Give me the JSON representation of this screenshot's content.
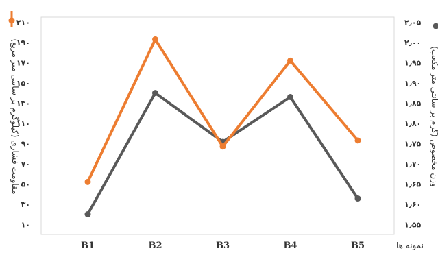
{
  "chart_data": {
    "type": "line",
    "categories": [
      "B1",
      "B2",
      "B3",
      "B4",
      "B5"
    ],
    "xlabel": "نمونه ها",
    "ylabel_left": "مقاومت فشاری (کیلوگرم بر سانتی متر مربع)",
    "ylabel_right": "وزن مخصوص (گرم بر سانتی متر مکعب)",
    "yticks_left": [
      "۱۰",
      "۳۰",
      "۵۰",
      "۷۰",
      "۹۰",
      "۱۱۰",
      "۱۳۰",
      "۱۵۰",
      "۱۷۰",
      "۱۹۰",
      "۲۱۰"
    ],
    "yticks_right": [
      "۱٫۵۵",
      "۱٫۶۰",
      "۱٫۶۵",
      "۱٫۷۰",
      "۱٫۷۵",
      "۱٫۸۰",
      "۱٫۸۵",
      "۱٫۹۰",
      "۱٫۹۵",
      "۲٫۰۰",
      "۲٫۰۵"
    ],
    "ylim_left": [
      0,
      215
    ],
    "ylim_right": [
      1.525,
      2.0625
    ],
    "grid": false,
    "series": [
      {
        "axis": "left",
        "color": "#ed7d31",
        "values": [
          52,
          193,
          87,
          172,
          93
        ]
      },
      {
        "axis": "right",
        "color": "#595959",
        "values": [
          1.575,
          1.875,
          1.754,
          1.865,
          1.614
        ]
      }
    ]
  }
}
